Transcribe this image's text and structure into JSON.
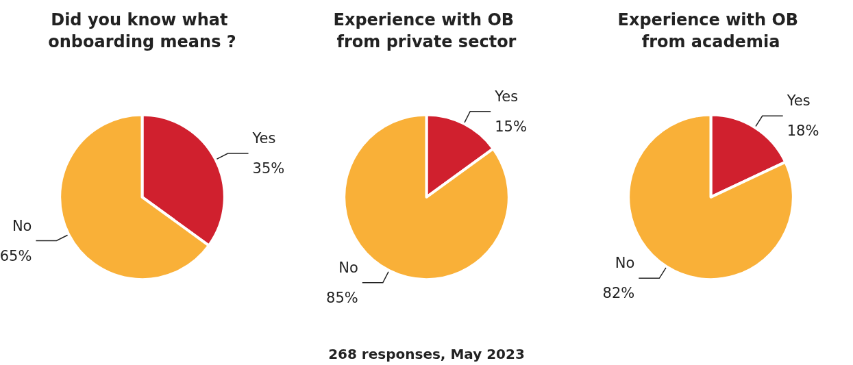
{
  "chart_data": [
    {
      "type": "pie",
      "title": "Did you know what onboarding means ?",
      "categories": [
        "Yes",
        "No"
      ],
      "values": [
        35,
        65
      ],
      "value_labels": [
        "35%",
        "65%"
      ],
      "colors": [
        "#d0202e",
        "#f9b038"
      ]
    },
    {
      "type": "pie",
      "title": "Experience with OB from private sector",
      "categories": [
        "Yes",
        "No"
      ],
      "values": [
        15,
        85
      ],
      "value_labels": [
        "15%",
        "85%"
      ],
      "colors": [
        "#d0202e",
        "#f9b038"
      ],
      "annotations": [
        "268 responses, May 2023"
      ]
    },
    {
      "type": "pie",
      "title": "Experience with OB from academia",
      "categories": [
        "Yes",
        "No"
      ],
      "values": [
        18,
        82
      ],
      "value_labels": [
        "18%",
        "82%"
      ],
      "colors": [
        "#d0202e",
        "#f9b038"
      ]
    }
  ]
}
